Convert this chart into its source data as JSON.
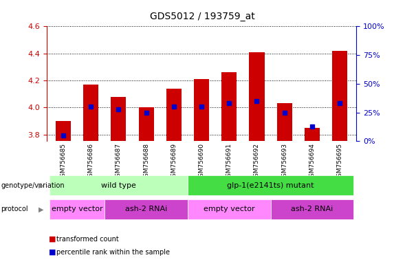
{
  "title": "GDS5012 / 193759_at",
  "samples": [
    "GSM756685",
    "GSM756686",
    "GSM756687",
    "GSM756688",
    "GSM756689",
    "GSM756690",
    "GSM756691",
    "GSM756692",
    "GSM756693",
    "GSM756694",
    "GSM756695"
  ],
  "red_values": [
    3.9,
    4.17,
    4.08,
    4.0,
    4.14,
    4.21,
    4.26,
    4.41,
    4.03,
    3.85,
    4.42
  ],
  "blue_pct": [
    5,
    30,
    28,
    25,
    30,
    30,
    33,
    35,
    25,
    13,
    33
  ],
  "ylim_left": [
    3.75,
    4.6
  ],
  "ylim_right": [
    0,
    100
  ],
  "yticks_left": [
    3.8,
    4.0,
    4.2,
    4.4,
    4.6
  ],
  "yticks_right": [
    0,
    25,
    50,
    75,
    100
  ],
  "ytick_labels_right": [
    "0%",
    "25%",
    "50%",
    "75%",
    "100%"
  ],
  "bar_color": "#cc0000",
  "blue_color": "#0000cc",
  "bar_bottom": 3.75,
  "genotype_groups": [
    {
      "label": "wild type",
      "start": 0,
      "end": 5,
      "color": "#bbffbb"
    },
    {
      "label": "glp-1(e2141ts) mutant",
      "start": 5,
      "end": 11,
      "color": "#44dd44"
    }
  ],
  "protocol_groups": [
    {
      "label": "empty vector",
      "start": 0,
      "end": 2,
      "color": "#ff88ff"
    },
    {
      "label": "ash-2 RNAi",
      "start": 2,
      "end": 5,
      "color": "#cc44cc"
    },
    {
      "label": "empty vector",
      "start": 5,
      "end": 8,
      "color": "#ff88ff"
    },
    {
      "label": "ash-2 RNAi",
      "start": 8,
      "end": 11,
      "color": "#cc44cc"
    }
  ],
  "legend_items": [
    {
      "color": "#cc0000",
      "label": "transformed count"
    },
    {
      "color": "#0000cc",
      "label": "percentile rank within the sample"
    }
  ],
  "left_axis_color": "#cc0000",
  "right_axis_color": "#0000cc",
  "bg_color": "#ffffff",
  "plot_bg": "#ffffff"
}
